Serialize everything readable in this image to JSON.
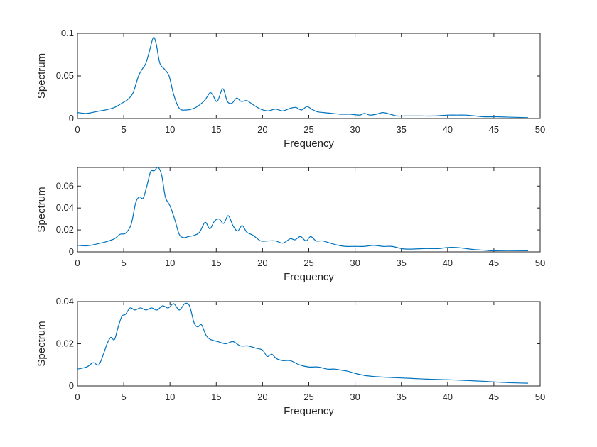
{
  "chart_data": [
    {
      "type": "line",
      "xlabel": "Frequency",
      "ylabel": "Spectrum",
      "xlim": [
        0,
        50
      ],
      "ylim": [
        0,
        0.1
      ],
      "xticks": [
        0,
        5,
        10,
        15,
        20,
        25,
        30,
        35,
        40,
        45,
        50
      ],
      "xtick_labels": [
        "0",
        "5",
        "10",
        "15",
        "20",
        "25",
        "30",
        "35",
        "40",
        "45",
        "50"
      ],
      "yticks": [
        0,
        0.05,
        0.1
      ],
      "ytick_labels": [
        "0",
        "0.05",
        "0.1"
      ],
      "color": "#0072BD",
      "grid": false,
      "series": [
        {
          "x": [
            0,
            1,
            2,
            3,
            4,
            4.8,
            5.4,
            6,
            6.6,
            7,
            7.4,
            7.8,
            8.2,
            8.5,
            8.9,
            9.4,
            9.9,
            10.4,
            11,
            11.8,
            12.6,
            13.2,
            13.8,
            14.3,
            14.6,
            15.1,
            15.7,
            16.2,
            16.7,
            17.2,
            17.7,
            18.3,
            19,
            19.8,
            20.6,
            21.4,
            22.2,
            23,
            23.6,
            24.2,
            24.8,
            25.3,
            25.9,
            26.6,
            27.5,
            28.5,
            29.5,
            30.5,
            31,
            31.6,
            32.3,
            33,
            33.8,
            34.5,
            35.5,
            37,
            38.5,
            40,
            41,
            42,
            43,
            44,
            45.5,
            47,
            48.7
          ],
          "y": [
            0.007,
            0.006,
            0.008,
            0.01,
            0.013,
            0.018,
            0.022,
            0.03,
            0.05,
            0.058,
            0.065,
            0.08,
            0.095,
            0.088,
            0.065,
            0.058,
            0.05,
            0.028,
            0.012,
            0.01,
            0.012,
            0.016,
            0.022,
            0.03,
            0.028,
            0.02,
            0.035,
            0.02,
            0.018,
            0.024,
            0.02,
            0.021,
            0.016,
            0.011,
            0.009,
            0.011,
            0.009,
            0.012,
            0.013,
            0.01,
            0.014,
            0.011,
            0.008,
            0.007,
            0.006,
            0.005,
            0.005,
            0.004,
            0.006,
            0.004,
            0.005,
            0.007,
            0.005,
            0.003,
            0.003,
            0.003,
            0.003,
            0.004,
            0.004,
            0.004,
            0.003,
            0.002,
            0.002,
            0.0015,
            0.001
          ]
        }
      ]
    },
    {
      "type": "line",
      "xlabel": "Frequency",
      "ylabel": "Spectrum",
      "xlim": [
        0,
        50
      ],
      "ylim": [
        0,
        0.077
      ],
      "xticks": [
        0,
        5,
        10,
        15,
        20,
        25,
        30,
        35,
        40,
        45,
        50
      ],
      "xtick_labels": [
        "0",
        "5",
        "10",
        "15",
        "20",
        "25",
        "30",
        "35",
        "40",
        "45",
        "50"
      ],
      "yticks": [
        0,
        0.02,
        0.04,
        0.06
      ],
      "ytick_labels": [
        "0",
        "0.02",
        "0.04",
        "0.06"
      ],
      "color": "#0072BD",
      "grid": false,
      "series": [
        {
          "x": [
            0,
            1,
            2,
            3,
            4,
            4.6,
            5.2,
            5.8,
            6.3,
            6.7,
            7.1,
            7.5,
            7.9,
            8.3,
            8.7,
            9.1,
            9.5,
            10,
            10.5,
            11,
            11.5,
            12,
            12.6,
            13.2,
            13.8,
            14.3,
            14.8,
            15.3,
            15.8,
            16.3,
            16.8,
            17.3,
            17.8,
            18.3,
            19,
            19.8,
            20.6,
            21.4,
            22.2,
            23,
            23.5,
            24.1,
            24.7,
            25.2,
            25.8,
            26.5,
            27.3,
            28.2,
            29,
            30,
            31,
            32,
            33,
            34,
            35,
            36,
            37.5,
            39,
            40,
            41,
            42,
            43,
            44,
            45,
            46.5,
            48.7
          ],
          "y": [
            0.006,
            0.0055,
            0.007,
            0.009,
            0.012,
            0.016,
            0.017,
            0.025,
            0.045,
            0.05,
            0.049,
            0.06,
            0.073,
            0.074,
            0.077,
            0.07,
            0.05,
            0.042,
            0.03,
            0.016,
            0.013,
            0.014,
            0.015,
            0.018,
            0.027,
            0.021,
            0.028,
            0.03,
            0.026,
            0.033,
            0.024,
            0.019,
            0.024,
            0.018,
            0.015,
            0.01,
            0.01,
            0.01,
            0.008,
            0.012,
            0.011,
            0.014,
            0.01,
            0.014,
            0.01,
            0.01,
            0.008,
            0.006,
            0.005,
            0.005,
            0.005,
            0.006,
            0.005,
            0.005,
            0.003,
            0.0025,
            0.003,
            0.003,
            0.004,
            0.004,
            0.003,
            0.002,
            0.0015,
            0.001,
            0.0012,
            0.001
          ]
        }
      ]
    },
    {
      "type": "line",
      "xlabel": "Frequency",
      "ylabel": "Spectrum",
      "xlim": [
        0,
        50
      ],
      "ylim": [
        0,
        0.04
      ],
      "xticks": [
        0,
        5,
        10,
        15,
        20,
        25,
        30,
        35,
        40,
        45,
        50
      ],
      "xtick_labels": [
        "0",
        "5",
        "10",
        "15",
        "20",
        "25",
        "30",
        "35",
        "40",
        "45",
        "50"
      ],
      "yticks": [
        0,
        0.02,
        0.04
      ],
      "ytick_labels": [
        "0",
        "0.02",
        "0.04"
      ],
      "color": "#0072BD",
      "grid": false,
      "series": [
        {
          "x": [
            0,
            1,
            1.7,
            2.3,
            2.8,
            3.2,
            3.6,
            4,
            4.4,
            4.8,
            5.2,
            5.7,
            6.2,
            6.8,
            7.4,
            8,
            8.6,
            9.2,
            9.8,
            10.4,
            11,
            11.6,
            12.1,
            12.6,
            13,
            13.4,
            13.9,
            14.4,
            15.2,
            16,
            16.8,
            17.6,
            18.4,
            19.2,
            20,
            20.5,
            21,
            21.5,
            22.2,
            23,
            24,
            25,
            26,
            27,
            27.8,
            28.5,
            29.2,
            30,
            31,
            32,
            33,
            34,
            35,
            36.5,
            38,
            39.5,
            41,
            42.5,
            44,
            45.5,
            47,
            48.7
          ],
          "y": [
            0.008,
            0.009,
            0.011,
            0.01,
            0.015,
            0.02,
            0.023,
            0.022,
            0.028,
            0.033,
            0.034,
            0.037,
            0.036,
            0.037,
            0.036,
            0.037,
            0.036,
            0.038,
            0.037,
            0.039,
            0.036,
            0.039,
            0.038,
            0.03,
            0.028,
            0.029,
            0.024,
            0.022,
            0.021,
            0.02,
            0.021,
            0.019,
            0.019,
            0.018,
            0.017,
            0.014,
            0.015,
            0.013,
            0.012,
            0.012,
            0.01,
            0.009,
            0.009,
            0.008,
            0.008,
            0.0075,
            0.007,
            0.006,
            0.005,
            0.0045,
            0.0042,
            0.004,
            0.0038,
            0.0035,
            0.0032,
            0.003,
            0.0028,
            0.0025,
            0.0022,
            0.0018,
            0.0015,
            0.0013
          ]
        }
      ]
    }
  ]
}
